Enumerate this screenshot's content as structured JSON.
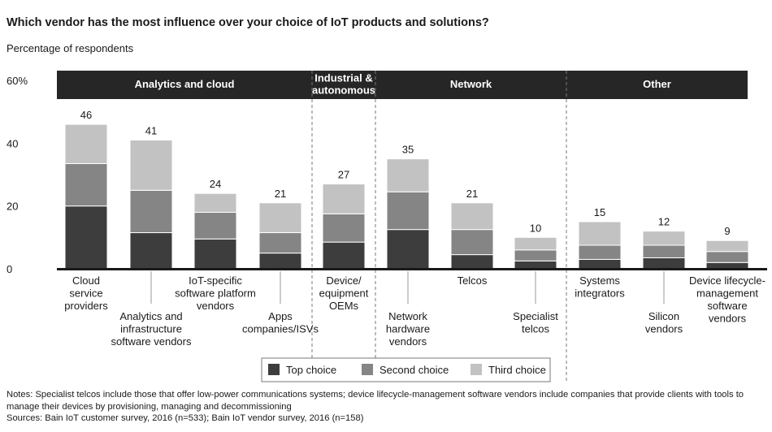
{
  "title": "Which vendor has the most influence over your choice of IoT products and solutions?",
  "subtitle": "Percentage of respondents",
  "notes": {
    "note": "Notes: Specialist telcos include those that offer low-power communications systems; device lifecycle-management software vendors include companies that provide clients with tools to manage their devices by provisioning, managing and decommissioning",
    "sources": "Sources: Bain IoT customer survey, 2016 (n=533); Bain IoT vendor survey, 2016 (n=158)"
  },
  "chart_data": {
    "type": "bar",
    "stacked": true,
    "ylim": [
      0,
      60
    ],
    "yticks": [
      "0",
      "20",
      "40",
      "60%"
    ],
    "ytick_values": [
      0,
      20,
      40,
      60
    ],
    "categories": [
      "Cloud service providers",
      "Analytics and infrastructure software vendors",
      "IoT-specific software platform vendors",
      "Apps companies/ISVs",
      "Device/ equipment OEMs",
      "Network hardware vendors",
      "Telcos",
      "Specialist telcos",
      "Systems integrators",
      "Silicon vendors",
      "Device lifecycle-management software vendors"
    ],
    "category_labels": [
      [
        "Cloud",
        "service",
        "providers"
      ],
      [
        "Analytics and",
        "infrastructure",
        "software vendors"
      ],
      [
        "IoT-specific",
        "software platform",
        "vendors"
      ],
      [
        "Apps",
        "companies/ISVs"
      ],
      [
        "Device/",
        "equipment",
        "OEMs"
      ],
      [
        "Network",
        "hardware",
        "vendors"
      ],
      [
        "Telcos"
      ],
      [
        "Specialist",
        "telcos"
      ],
      [
        "Systems",
        "integrators"
      ],
      [
        "Silicon",
        "vendors"
      ],
      [
        "Device lifecycle-",
        "management",
        "software",
        "vendors"
      ]
    ],
    "series": [
      {
        "name": "Top choice",
        "color": "#3d3d3d",
        "values": [
          20,
          11.5,
          9.5,
          5,
          8.5,
          12.5,
          4.5,
          2.5,
          3,
          3.5,
          2
        ]
      },
      {
        "name": "Second choice",
        "color": "#858585",
        "values": [
          13.5,
          13.5,
          8.5,
          6.5,
          9,
          12,
          8,
          3.5,
          4.5,
          4,
          3.5
        ]
      },
      {
        "name": "Third choice",
        "color": "#c2c2c2",
        "values": [
          12.5,
          16,
          6,
          9.5,
          9.5,
          10.5,
          8.5,
          4,
          7.5,
          4.5,
          3.5
        ]
      }
    ],
    "totals": [
      46,
      41,
      24,
      21,
      27,
      35,
      21,
      10,
      15,
      12,
      9
    ],
    "groups": [
      {
        "label": [
          "Analytics and cloud"
        ],
        "categories": [
          0,
          1,
          2,
          3
        ]
      },
      {
        "label": [
          "Industrial &",
          "autonomous"
        ],
        "categories": [
          4
        ]
      },
      {
        "label": [
          "Network"
        ],
        "categories": [
          5,
          6,
          7
        ]
      },
      {
        "label": [
          "Other"
        ],
        "categories": [
          8,
          9,
          10
        ]
      }
    ],
    "legend_position": "bottom-center",
    "grid": false
  }
}
